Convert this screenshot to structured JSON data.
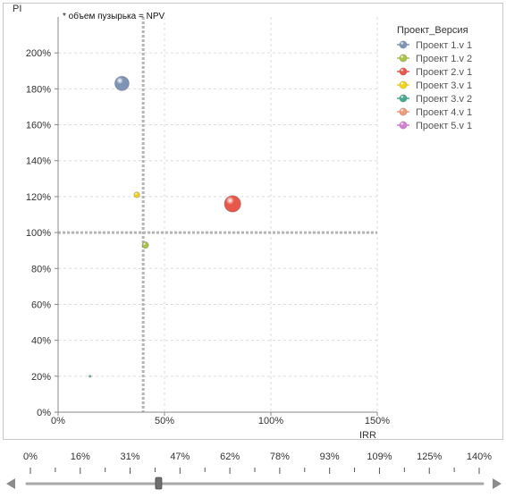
{
  "chart_data": {
    "type": "scatter",
    "title": "",
    "annotation": "* объем пузырька = NPV",
    "xlabel": "IRR",
    "ylabel": "PI",
    "x_unit": "percent",
    "y_unit": "percent",
    "xlim": [
      0,
      150
    ],
    "ylim": [
      0,
      220
    ],
    "x_ticks": [
      0,
      50,
      100,
      150
    ],
    "y_ticks": [
      0,
      20,
      40,
      60,
      80,
      100,
      120,
      140,
      160,
      180,
      200
    ],
    "x_tick_labels": [
      "0%",
      "50%",
      "100%",
      "150%"
    ],
    "y_tick_labels": [
      "0%",
      "20%",
      "40%",
      "60%",
      "80%",
      "100%",
      "120%",
      "140%",
      "160%",
      "180%",
      "200%"
    ],
    "reference_lines": {
      "x": 40,
      "y": 100
    },
    "grid": true,
    "legend_position": "right",
    "legend_title": "Проект_Версия",
    "series": [
      {
        "name": "Проект 1.v 1",
        "color": "#7f93b5",
        "points": [
          {
            "x": 30,
            "y": 183,
            "size": 10
          }
        ]
      },
      {
        "name": "Проект 1.v 2",
        "color": "#a8c24a",
        "points": [
          {
            "x": 41,
            "y": 93,
            "size": 4.5
          }
        ]
      },
      {
        "name": "Проект 2.v 1",
        "color": "#e8584a",
        "points": [
          {
            "x": 82,
            "y": 116,
            "size": 11.5
          }
        ]
      },
      {
        "name": "Проект 3.v 1",
        "color": "#f2d21c",
        "points": [
          {
            "x": 37,
            "y": 121,
            "size": 4
          }
        ]
      },
      {
        "name": "Проект 3.v 2",
        "color": "#45a88e",
        "points": [
          {
            "x": 15,
            "y": 20,
            "size": 1.5
          }
        ]
      },
      {
        "name": "Проект 4.v 1",
        "color": "#ee9b78",
        "points": []
      },
      {
        "name": "Проект 5.v 1",
        "color": "#d57fcf",
        "points": []
      }
    ]
  },
  "slider": {
    "tick_labels": [
      "0%",
      "16%",
      "31%",
      "47%",
      "62%",
      "78%",
      "93%",
      "109%",
      "125%",
      "140%"
    ],
    "value": 40,
    "range": [
      0,
      140
    ],
    "track_color": "#9a9a9a"
  }
}
